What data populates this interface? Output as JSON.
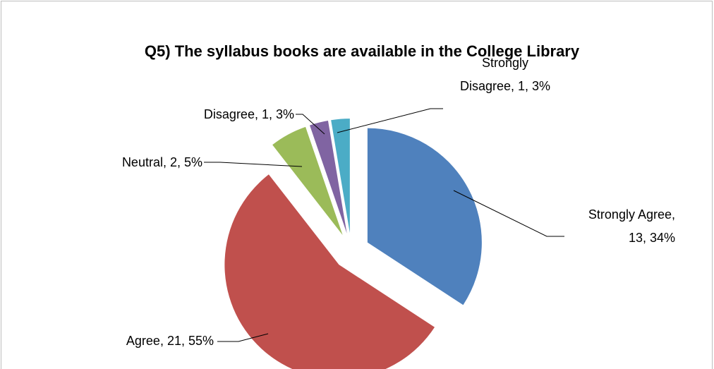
{
  "chart_data": {
    "type": "pie",
    "title": "Q5) The syllabus books are available in the College Library",
    "slices": [
      {
        "name": "Strongly Agree",
        "value": 13,
        "percent": "34%",
        "color": "#4F81BD",
        "exploded": true
      },
      {
        "name": "Agree",
        "value": 21,
        "percent": "55%",
        "color": "#C0504D",
        "exploded": true
      },
      {
        "name": "Neutral",
        "value": 2,
        "percent": "5%",
        "color": "#9BBB59",
        "exploded": true
      },
      {
        "name": "Disagree",
        "value": 1,
        "percent": "3%",
        "color": "#8064A2",
        "exploded": true
      },
      {
        "name": "Strongly Disagree",
        "value": 1,
        "percent": "3%",
        "color": "#4BACC6",
        "exploded": true
      }
    ],
    "data_labels": [
      {
        "lines": [
          "Strongly Agree,",
          "13, 34%"
        ]
      },
      {
        "lines": [
          "Agree, 21, 55%"
        ]
      },
      {
        "lines": [
          "Neutral, 2, 5%"
        ]
      },
      {
        "lines": [
          "Disagree, 1, 3%"
        ]
      },
      {
        "lines": [
          "Strongly",
          "Disagree, 1, 3%"
        ]
      }
    ],
    "legend": "none"
  }
}
